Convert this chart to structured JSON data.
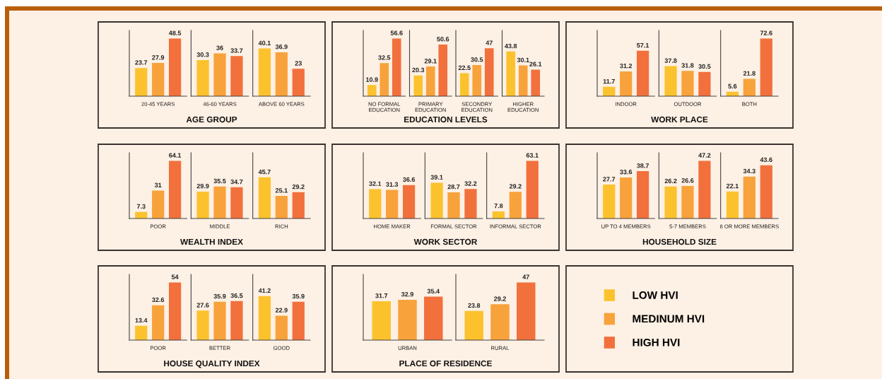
{
  "chart_data": [
    {
      "type": "bar",
      "title": "AGE GROUP",
      "categories": [
        "20-45 YEARS",
        "46-60 YEARS",
        "ABOVE 60 YEARS"
      ],
      "data_labels": true,
      "legend": "bottom right",
      "series": [
        {
          "name": "LOW HVI",
          "color": "#fcc22d",
          "values": [
            23.7,
            30.3,
            40.1
          ]
        },
        {
          "name": "MEDINUM HVI",
          "color": "#f8a23b",
          "values": [
            27.9,
            36,
            36.9
          ]
        },
        {
          "name": "HIGH HVI",
          "color": "#f2703c",
          "values": [
            48.5,
            33.7,
            23
          ]
        }
      ]
    },
    {
      "type": "bar",
      "title": "EDUCATION LEVELS",
      "categories": [
        "NO FORMAL EDUCATION",
        "PRIMARY EDUCATION",
        "SECONDRY EDUCATION",
        "HIGHER EDUCATION"
      ],
      "data_labels": true,
      "series": [
        {
          "color": "#fcc22d",
          "values": [
            10.9,
            20.3,
            22.5,
            43.8
          ]
        },
        {
          "color": "#f8a23b",
          "values": [
            32.5,
            29.1,
            30.5,
            30.1
          ]
        },
        {
          "color": "#f2703c",
          "values": [
            56.6,
            50.6,
            47,
            26.1
          ]
        }
      ]
    },
    {
      "type": "bar",
      "title": "WORK PLACE",
      "categories": [
        "INDOOR",
        "OUTDOOR",
        "BOTH"
      ],
      "data_labels": true,
      "series": [
        {
          "color": "#fcc22d",
          "values": [
            11.7,
            37.8,
            5.6
          ]
        },
        {
          "color": "#f8a23b",
          "values": [
            31.2,
            31.8,
            21.8
          ]
        },
        {
          "color": "#f2703c",
          "values": [
            57.1,
            30.5,
            72.6
          ]
        }
      ]
    },
    {
      "type": "bar",
      "title": "WEALTH INDEX",
      "categories": [
        "POOR",
        "MIDDLE",
        "RICH"
      ],
      "data_labels": true,
      "series": [
        {
          "color": "#fcc22d",
          "values": [
            7.3,
            29.9,
            45.7
          ]
        },
        {
          "color": "#f8a23b",
          "values": [
            31,
            35.5,
            25.1
          ]
        },
        {
          "color": "#f2703c",
          "values": [
            64.1,
            34.7,
            29.2
          ]
        }
      ]
    },
    {
      "type": "bar",
      "title": "WORK SECTOR",
      "categories": [
        "HOME MAKER",
        "FORMAL SECTOR",
        "INFORMAL SECTOR"
      ],
      "data_labels": true,
      "series": [
        {
          "color": "#fcc22d",
          "values": [
            32.1,
            39.1,
            7.8
          ]
        },
        {
          "color": "#f8a23b",
          "values": [
            31.3,
            28.7,
            29.2
          ]
        },
        {
          "color": "#f2703c",
          "values": [
            36.6,
            32.2,
            63.1
          ]
        }
      ]
    },
    {
      "type": "bar",
      "title": "HOUSEHOLD SIZE",
      "categories": [
        "UP TO 4 MEMBERS",
        "5-7 MEMBERS",
        "8 OR MORE MEMBERS"
      ],
      "data_labels": true,
      "series": [
        {
          "color": "#fcc22d",
          "values": [
            27.7,
            26.2,
            22.1
          ]
        },
        {
          "color": "#f8a23b",
          "values": [
            33.6,
            26.6,
            34.3
          ]
        },
        {
          "color": "#f2703c",
          "values": [
            38.7,
            47.2,
            43.6
          ]
        }
      ]
    },
    {
      "type": "bar",
      "title": "HOUSE QUALITY INDEX",
      "categories": [
        "POOR",
        "BETTER",
        "GOOD"
      ],
      "data_labels": true,
      "series": [
        {
          "color": "#fcc22d",
          "values": [
            13.4,
            27.6,
            41.2
          ]
        },
        {
          "color": "#f8a23b",
          "values": [
            32.6,
            35.9,
            22.9
          ]
        },
        {
          "color": "#f2703c",
          "values": [
            54,
            36.5,
            35.9
          ]
        }
      ]
    },
    {
      "type": "bar",
      "title": "PLACE OF RESIDENCE",
      "categories": [
        "URBAN",
        "RURAL"
      ],
      "data_labels": true,
      "series": [
        {
          "color": "#fcc22d",
          "values": [
            31.7,
            23.8
          ]
        },
        {
          "color": "#f8a23b",
          "values": [
            32.9,
            29.2
          ]
        },
        {
          "color": "#f2703c",
          "values": [
            35.4,
            47
          ]
        }
      ]
    }
  ]
}
